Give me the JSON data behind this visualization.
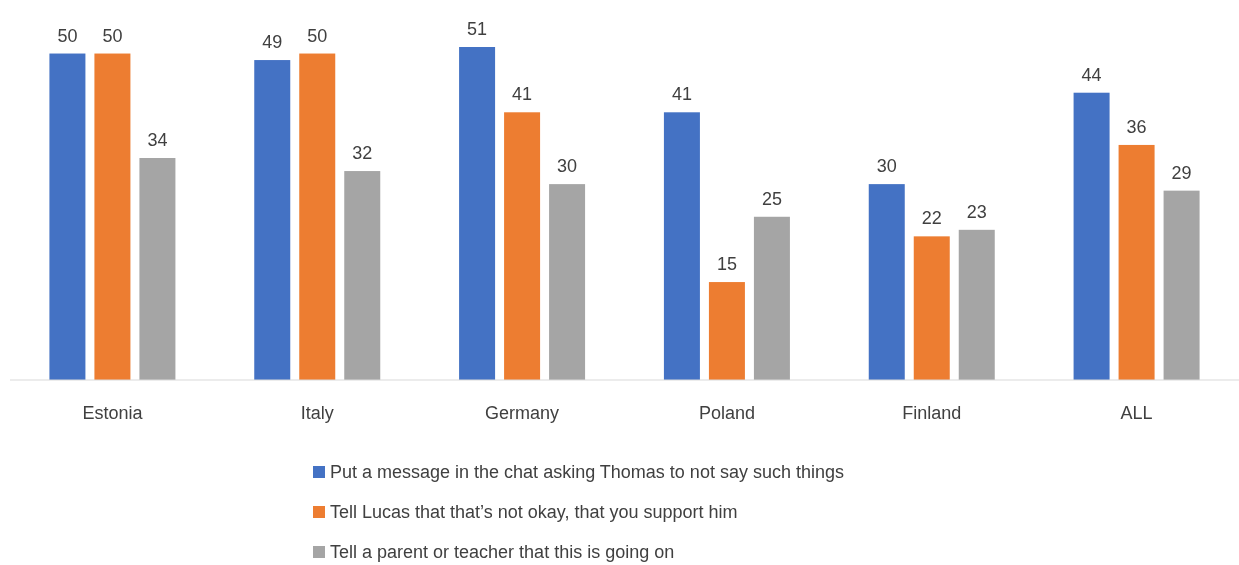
{
  "chart_data": {
    "type": "bar",
    "categories": [
      "Estonia",
      "Italy",
      "Germany",
      "Poland",
      "Finland",
      "ALL"
    ],
    "series": [
      {
        "name": "Put a message in the chat asking Thomas to not say such things",
        "color": "#4472c4",
        "values": [
          50,
          49,
          51,
          41,
          30,
          44
        ]
      },
      {
        "name": "Tell Lucas that that’s not okay, that you support him",
        "color": "#ed7d31",
        "values": [
          50,
          50,
          41,
          15,
          22,
          36
        ]
      },
      {
        "name": "Tell a parent or teacher that this is going on",
        "color": "#a5a5a5",
        "values": [
          34,
          32,
          30,
          25,
          23,
          29
        ]
      }
    ],
    "data_labels": true,
    "legend": "bottom"
  }
}
